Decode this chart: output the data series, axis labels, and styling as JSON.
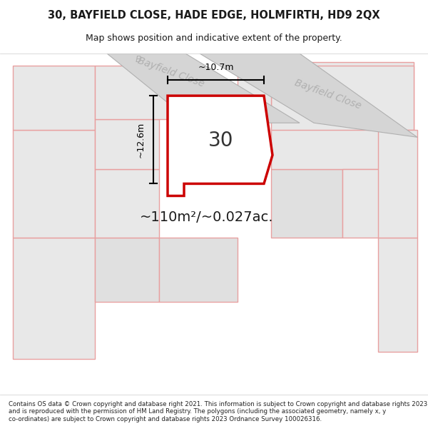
{
  "title_line1": "30, BAYFIELD CLOSE, HADE EDGE, HOLMFIRTH, HD9 2QX",
  "title_line2": "Map shows position and indicative extent of the property.",
  "footer_text": "Contains OS data © Crown copyright and database right 2021. This information is subject to Crown copyright and database rights 2023 and is reproduced with the permission of HM Land Registry. The polygons (including the associated geometry, namely x, y co-ordinates) are subject to Crown copyright and database rights 2023 Ordnance Survey 100026316.",
  "area_label": "~110m²/~0.027ac.",
  "number_label": "30",
  "width_label": "~10.7m",
  "height_label": "~12.6m",
  "bg_color": "#f5f5f5",
  "map_bg": "#f0f0f0",
  "highlight_color": "#cc0000",
  "highlight_fill": "#ffffff",
  "cadastral_color": "#e8a0a0",
  "road_color": "#c8c8c8",
  "dim_color": "#1a1a1a",
  "title_color": "#1a1a1a",
  "road_label_color": "#b0b0b0",
  "street_label1": "Bayfield Close",
  "street_label2": "Bayfield Close"
}
